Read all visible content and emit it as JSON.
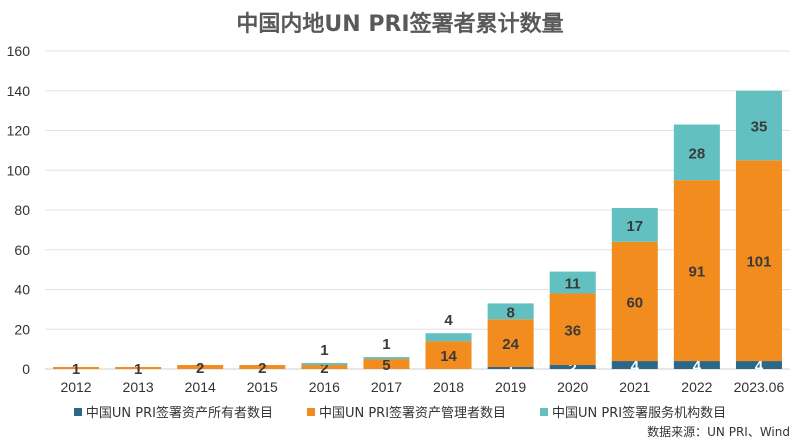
{
  "chart_data": {
    "type": "bar",
    "stacked": true,
    "title": "中国内地UN PRI签署者累计数量",
    "categories": [
      "2012",
      "2013",
      "2014",
      "2015",
      "2016",
      "2017",
      "2018",
      "2019",
      "2020",
      "2021",
      "2022",
      "2023.06"
    ],
    "series": [
      {
        "name": "中国UN PRI签署资产所有者数目",
        "color": "#2c6788",
        "values": [
          0,
          0,
          0,
          0,
          0,
          0,
          0,
          1,
          2,
          4,
          4,
          4
        ]
      },
      {
        "name": "中国UN PRI签署资产管理者数目",
        "color": "#f28c1e",
        "values": [
          1,
          1,
          2,
          2,
          2,
          5,
          14,
          24,
          36,
          60,
          91,
          101
        ]
      },
      {
        "name": "中国UN PRI签署服务机构数目",
        "color": "#62c0c0",
        "values": [
          0,
          0,
          0,
          0,
          1,
          1,
          4,
          8,
          11,
          17,
          28,
          35
        ]
      }
    ],
    "ylim": [
      0,
      160
    ],
    "yticks": [
      0,
      20,
      40,
      60,
      80,
      100,
      120,
      140,
      160
    ],
    "grid": true,
    "legend": "bottom",
    "xlabel": "",
    "ylabel": ""
  },
  "source": "数据来源：UN PRI、Wind"
}
